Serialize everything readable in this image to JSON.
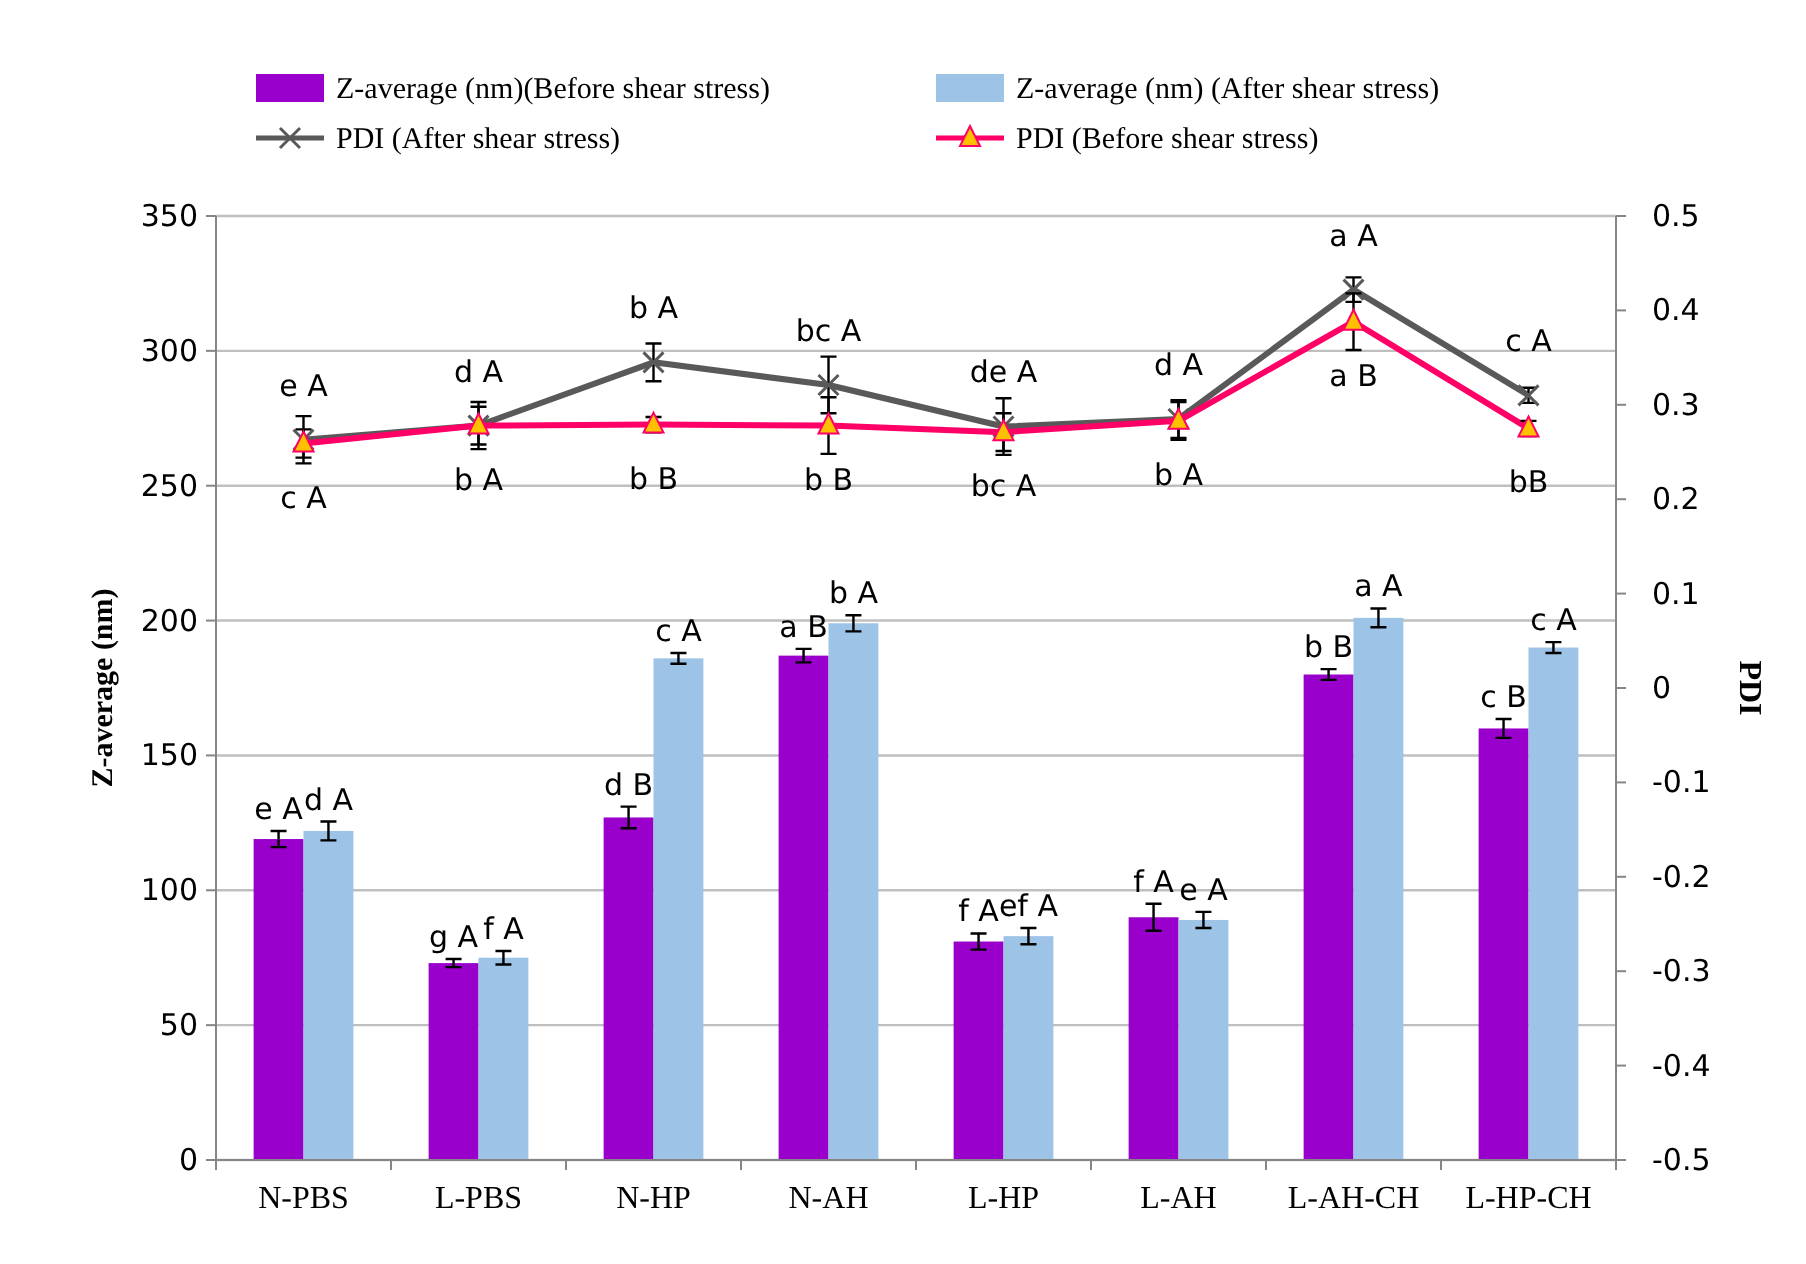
{
  "chart_data": {
    "type": "bar",
    "ylabel": "Z-average (nm)",
    "y2label": "PDI",
    "categories": [
      "N-PBS",
      "L-PBS",
      "N-HP",
      "N-AH",
      "L-HP",
      "L-AH",
      "L-AH-CH",
      "L-HP-CH"
    ],
    "ylim": [
      0,
      350
    ],
    "yticks": [
      0,
      50,
      100,
      150,
      200,
      250,
      300,
      350
    ],
    "y2lim": [
      -0.5,
      0.5
    ],
    "y2ticks": [
      -0.5,
      -0.4,
      -0.3,
      -0.2,
      -0.1,
      0,
      0.1,
      0.2,
      0.3,
      0.4,
      0.5
    ],
    "grid": "y",
    "legend": "top",
    "series": [
      {
        "name": "Z-average (nm)(Before shear stress)",
        "color": "#9900cc",
        "values": [
          119,
          73,
          127,
          187,
          81,
          90,
          180,
          160
        ],
        "errors": [
          3,
          1.5,
          4,
          2.5,
          3,
          5,
          2,
          3.5
        ],
        "value_labels": [
          "e A",
          "g A",
          "d B",
          "a B",
          "f A",
          "f A",
          "b B",
          "c B"
        ]
      },
      {
        "name": "Z-average (nm) (After shear stress)",
        "color": "#9dc3e6",
        "values": [
          122,
          75,
          186,
          199,
          83,
          89,
          201,
          190
        ],
        "errors": [
          3.5,
          2.5,
          2,
          3,
          3,
          3,
          3.5,
          2
        ],
        "value_labels": [
          "d A",
          "f A",
          "c A",
          "b A",
          "ef A",
          "e A",
          "a A",
          "c A"
        ]
      },
      {
        "name": "PDI (After shear stress)",
        "type": "line",
        "axis": "y2",
        "marker": "cross",
        "color": "#595959",
        "values": [
          0.263,
          0.278,
          0.345,
          0.321,
          0.277,
          0.285,
          0.422,
          0.31
        ],
        "errors": [
          0.025,
          0.025,
          0.02,
          0.03,
          0.03,
          0.02,
          0.013,
          0.008
        ],
        "value_labels": [
          "e A",
          "d A",
          "b A",
          "bc A",
          "de A",
          "d A",
          "a A",
          "c A"
        ]
      },
      {
        "name": "PDI (Before shear stress)",
        "type": "line",
        "axis": "y2",
        "marker": "triangle",
        "color": "#ff0066",
        "values": [
          0.259,
          0.278,
          0.279,
          0.278,
          0.271,
          0.283,
          0.388,
          0.275
        ],
        "errors": [
          0.015,
          0.02,
          0.008,
          0.03,
          0.02,
          0.02,
          0.03,
          0.008
        ],
        "value_labels": [
          "c A",
          "b A",
          "b B",
          "b B",
          "bc A",
          "b A",
          "a B",
          "bB"
        ]
      }
    ]
  }
}
